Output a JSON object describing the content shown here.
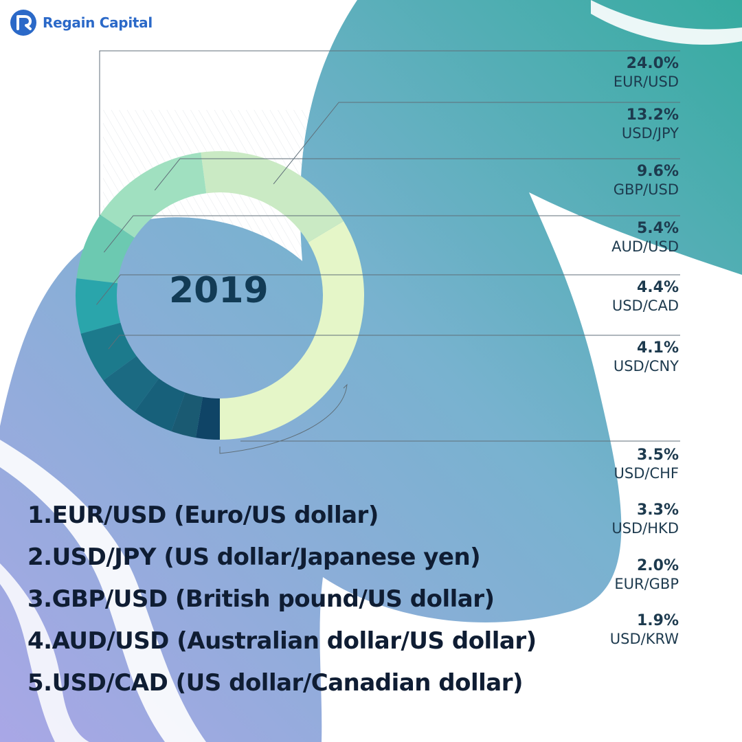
{
  "brand": {
    "name": "Regain Capital"
  },
  "colors": {
    "bg_gradient_start": "#a7a6e6",
    "bg_gradient_end": "#3aa9a3",
    "text_dark": "#123b55"
  },
  "chart_data": {
    "type": "donut",
    "center_label": "2019",
    "unit": "%",
    "slices": [
      {
        "label": "EUR/USD",
        "value": 24.0,
        "display": "24.0%",
        "color": "#e5f6c8"
      },
      {
        "label": "USD/JPY",
        "value": 13.2,
        "display": "13.2%",
        "color": "#caeac4"
      },
      {
        "label": "GBP/USD",
        "value": 9.6,
        "display": "9.6%",
        "color": "#a0e0c0"
      },
      {
        "label": "AUD/USD",
        "value": 5.4,
        "display": "5.4%",
        "color": "#6cc9b1"
      },
      {
        "label": "USD/CAD",
        "value": 4.4,
        "display": "4.4%",
        "color": "#2aa5ab"
      },
      {
        "label": "USD/CNY",
        "value": 4.1,
        "display": "4.1%",
        "color": "#1c7a8c"
      },
      {
        "label": "USD/CHF",
        "value": 3.5,
        "display": "3.5%",
        "color": "#1b6a82"
      },
      {
        "label": "USD/HKD",
        "value": 3.3,
        "display": "3.3%",
        "color": "#17607a"
      },
      {
        "label": "EUR/GBP",
        "value": 2.0,
        "display": "2.0%",
        "color": "#1a5a72"
      },
      {
        "label": "USD/KRW",
        "value": 1.9,
        "display": "1.9%",
        "color": "#0f4466"
      }
    ]
  },
  "top_pairs": [
    "1.EUR/USD (Euro/US dollar)",
    "2.USD/JPY (US dollar/Japanese yen)",
    "3.GBP/USD (British pound/US dollar)",
    "4.AUD/USD (Australian dollar/US dollar)",
    "5.USD/CAD (US dollar/Canadian dollar)"
  ]
}
